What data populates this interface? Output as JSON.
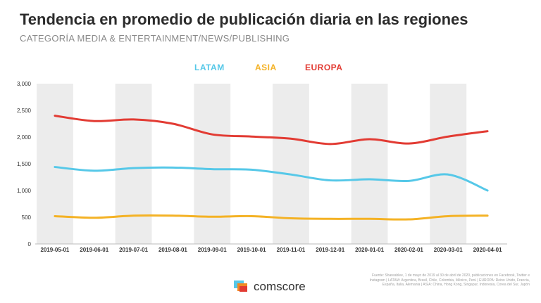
{
  "header": {
    "title": "Tendencia en promedio de publicación diaria en las regiones",
    "subtitle": "CATEGORÍA MEDIA & ENTERTAINMENT/NEWS/PUBLISHING"
  },
  "colors": {
    "latam": "#56c8e8",
    "asia": "#f4b225",
    "europa": "#e23b33",
    "band": "#ececec"
  },
  "chart_data": {
    "type": "line",
    "x": [
      "2019-05-01",
      "2019-06-01",
      "2019-07-01",
      "2019-08-01",
      "2019-09-01",
      "2019-10-01",
      "2019-11-01",
      "2019-12-01",
      "2020-01-01",
      "2020-02-01",
      "2020-03-01",
      "2020-04-01"
    ],
    "yticks": [
      "0",
      "500",
      "1,000",
      "1,500",
      "2,000",
      "2,500",
      "3,000"
    ],
    "ylim": [
      0,
      3000
    ],
    "grid": false,
    "legend_position": "top-center",
    "series": [
      {
        "name": "LATAM",
        "values": [
          1440,
          1370,
          1420,
          1430,
          1400,
          1390,
          1300,
          1190,
          1210,
          1180,
          1300,
          1000
        ]
      },
      {
        "name": "ASIA",
        "values": [
          520,
          490,
          530,
          530,
          510,
          520,
          480,
          470,
          470,
          460,
          520,
          530
        ]
      },
      {
        "name": "EUROPA",
        "values": [
          2400,
          2300,
          2330,
          2250,
          2050,
          2010,
          1970,
          1870,
          1960,
          1880,
          2010,
          2110
        ]
      }
    ]
  },
  "footer": {
    "source": "Fuente: Shareablee, 1 de mayo de 2019 al 30 de abril de 2020, publicaciones en Facebook, Twitter e Instagram | LATAM: Argentina, Brasil, Chile, Colombia, México, Perú | EUROPA: Reino Unido, Francia, España, Italia, Alemania | ASIA: China, Hong Kong, Singapur, Indonesia, Corea del Sur, Japón",
    "logo_text": "comscore",
    "logo_icon": "comscore-logo-icon"
  }
}
